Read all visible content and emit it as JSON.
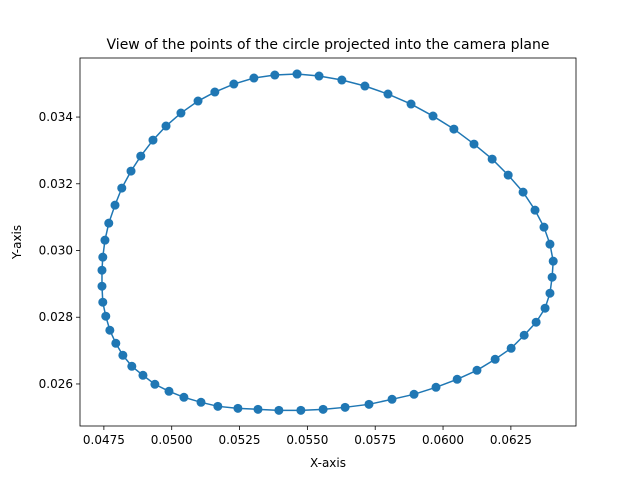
{
  "chart_data": {
    "type": "line",
    "title": "View of the points of the circle projected into the camera plane",
    "x_label": "X-axis",
    "y_label": "Y-axis",
    "color": "#1f77b4",
    "x": [
      0.05462,
      0.05543,
      0.05627,
      0.05712,
      0.05797,
      0.05882,
      0.05963,
      0.0604,
      0.06114,
      0.06181,
      0.0624,
      0.06295,
      0.06339,
      0.06372,
      0.06394,
      0.06406,
      0.06402,
      0.06394,
      0.06376,
      0.06343,
      0.06299,
      0.06251,
      0.06192,
      0.06125,
      0.06052,
      0.05974,
      0.05893,
      0.05812,
      0.05727,
      0.05639,
      0.05558,
      0.05476,
      0.05395,
      0.05318,
      0.05244,
      0.0517,
      0.05108,
      0.05045,
      0.0499,
      0.04938,
      0.04894,
      0.04853,
      0.0482,
      0.04794,
      0.04772,
      0.04757,
      0.04746,
      0.04743,
      0.04743,
      0.04746,
      0.04754,
      0.04768,
      0.04791,
      0.04816,
      0.0485,
      0.04886,
      0.04931,
      0.04979,
      0.05034,
      0.05097,
      0.05159,
      0.05229,
      0.05303,
      0.0538,
      0.05462
    ],
    "values": [
      0.03529,
      0.03523,
      0.03511,
      0.03493,
      0.03469,
      0.03439,
      0.03403,
      0.03364,
      0.03319,
      0.03274,
      0.03226,
      0.03175,
      0.03121,
      0.0307,
      0.03019,
      0.02968,
      0.0292,
      0.02872,
      0.02827,
      0.02785,
      0.02746,
      0.02707,
      0.02674,
      0.02641,
      0.02614,
      0.0259,
      0.02569,
      0.02554,
      0.02539,
      0.0253,
      0.02524,
      0.02521,
      0.02521,
      0.02524,
      0.02527,
      0.02533,
      0.02545,
      0.0256,
      0.02578,
      0.02599,
      0.02626,
      0.02653,
      0.02686,
      0.02722,
      0.02761,
      0.02803,
      0.02845,
      0.02893,
      0.02941,
      0.0298,
      0.03031,
      0.03082,
      0.03136,
      0.03187,
      0.03238,
      0.03283,
      0.03331,
      0.03373,
      0.03412,
      0.03448,
      0.03475,
      0.03499,
      0.03517,
      0.03526,
      0.03529
    ],
    "xlim": [
      0.04662,
      0.0649
    ],
    "ylim": [
      0.02474,
      0.03577
    ],
    "xticks": [
      0.0475,
      {
        "value": 0.05,
        "label": "0.0500"
      },
      0.0525,
      {
        "value": 0.055,
        "label": "0.0550"
      },
      0.0575,
      {
        "value": 0.06,
        "label": "0.0600"
      },
      0.0625
    ],
    "yticks": [
      0.026,
      0.028,
      {
        "value": 0.03,
        "label": "0.030"
      },
      0.032,
      0.034
    ]
  }
}
